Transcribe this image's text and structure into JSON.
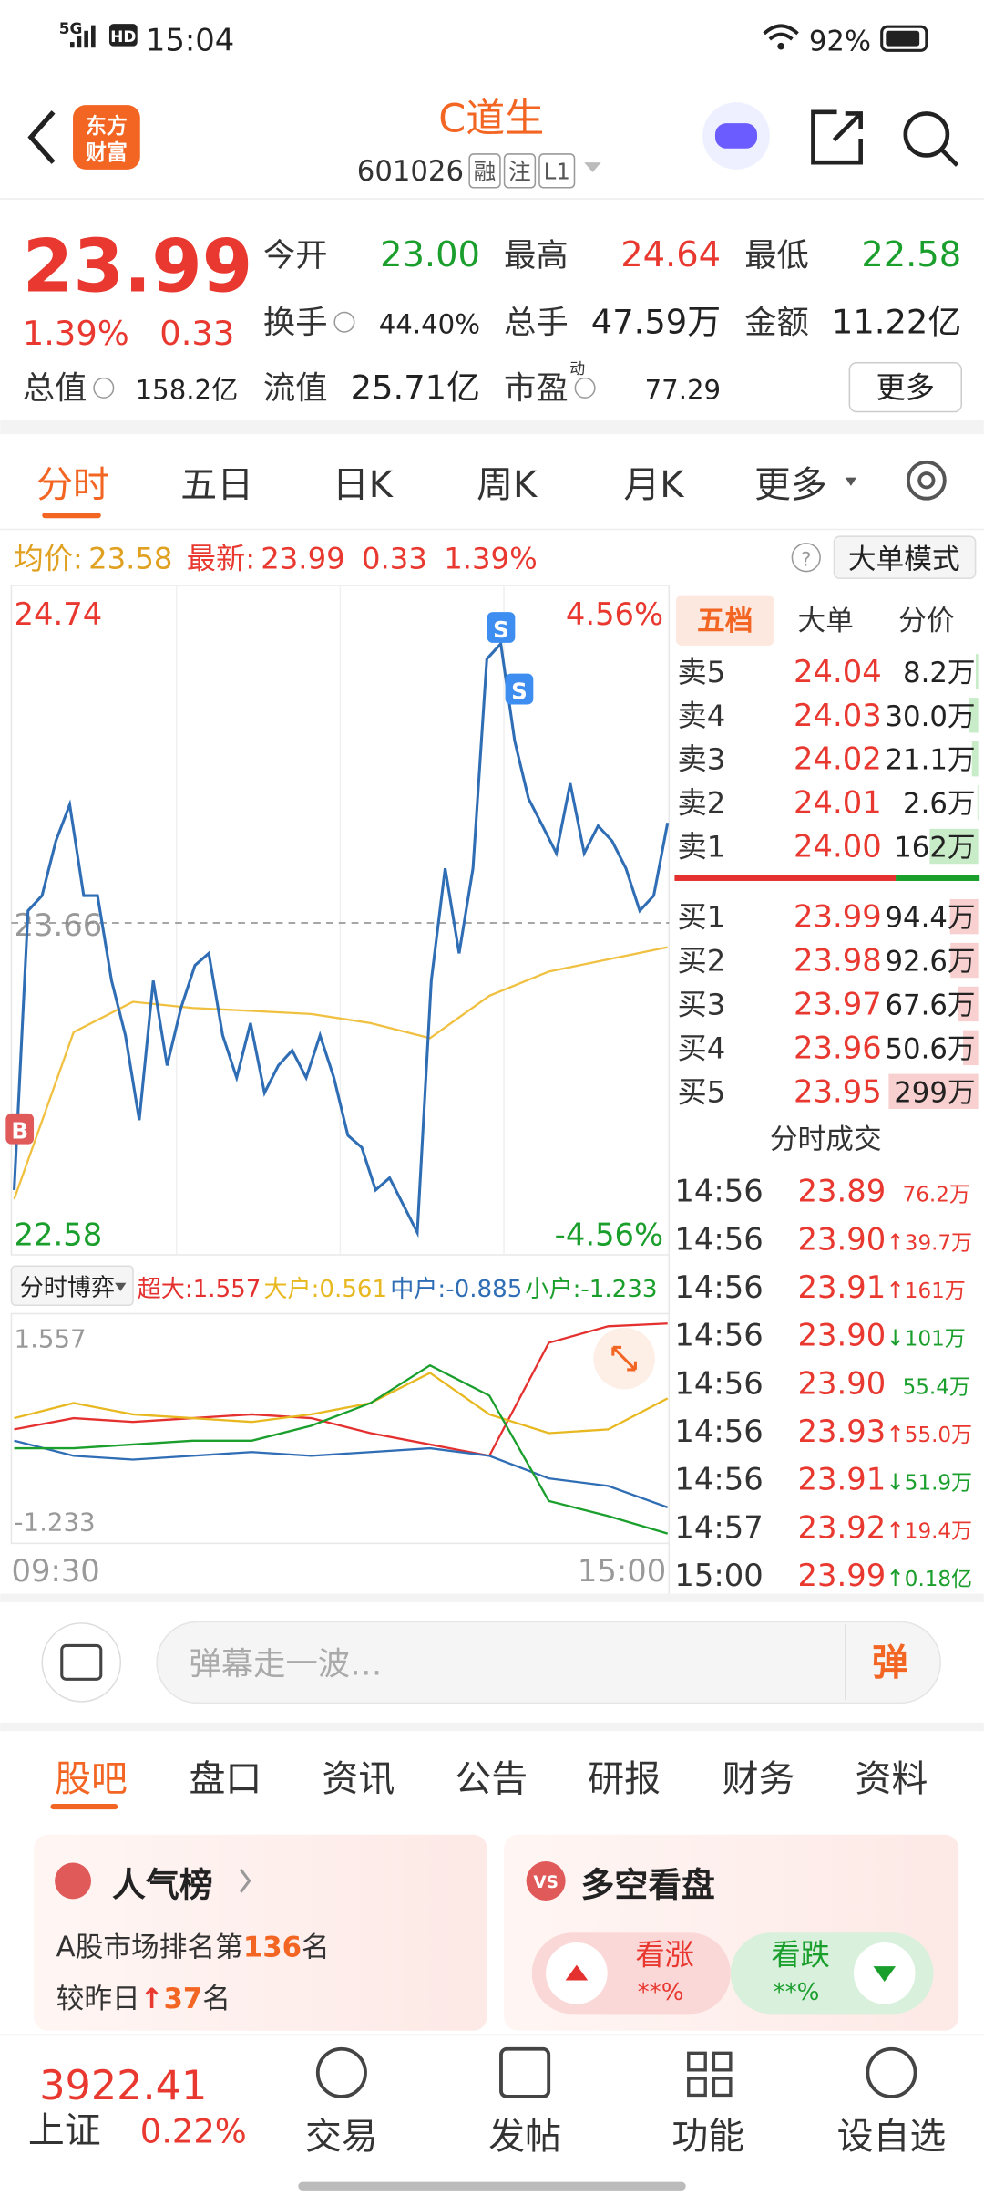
{
  "status_bar": {
    "network": "5G",
    "hd": "HD",
    "time": "15:04",
    "battery": "92%"
  },
  "header": {
    "logo": [
      "东方",
      "财富"
    ],
    "title": "C道生",
    "code": "601026",
    "tags": [
      "融",
      "注",
      "L1"
    ]
  },
  "quote": {
    "price": "23.99",
    "change_pct": "1.39%",
    "change": "0.33",
    "stats": [
      {
        "label": "今开",
        "value": "23.00"
      },
      {
        "label": "最高",
        "value": "24.64"
      },
      {
        "label": "最低",
        "value": "22.58"
      },
      {
        "label": "换手",
        "value": "44.40%"
      },
      {
        "label": "总手",
        "value": "47.59万"
      },
      {
        "label": "金额",
        "value": "11.22亿"
      },
      {
        "label": "总值",
        "value": "158.2亿"
      },
      {
        "label": "流值",
        "value": "25.71亿"
      },
      {
        "label": "市盈",
        "superscript": "动",
        "value": "77.29"
      }
    ],
    "more": "更多"
  },
  "tabs": [
    "分时",
    "五日",
    "日K",
    "周K",
    "月K",
    "更多"
  ],
  "info_bar": {
    "avg_label": "均价:",
    "avg": "23.58",
    "latest_label": "最新:",
    "latest": "23.99",
    "change": "0.33",
    "change_pct": "1.39%",
    "help": "?",
    "mode": "大单模式"
  },
  "chart": {
    "ylim": [
      22.58,
      24.74
    ],
    "yticks": [
      22.58,
      23.66,
      24.74
    ],
    "pct_labels": [
      "4.56%",
      "-4.56%"
    ],
    "markers": [
      "S",
      "S",
      "B"
    ],
    "price": {
      "color": "#2f6db5",
      "values": [
        22.78,
        23.7,
        23.75,
        23.93,
        24.05,
        23.75,
        23.75,
        23.47,
        23.29,
        23.01,
        23.47,
        23.19,
        23.38,
        23.52,
        23.56,
        23.29,
        23.15,
        23.33,
        23.1,
        23.19,
        23.24,
        23.15,
        23.29,
        23.15,
        22.96,
        22.92,
        22.78,
        22.82,
        22.73,
        22.64,
        23.47,
        23.84,
        23.56,
        23.84,
        24.53,
        24.58,
        24.26,
        24.07,
        23.98,
        23.89,
        24.12,
        23.89,
        23.98,
        23.93,
        23.84,
        23.7,
        23.75,
        23.99
      ]
    },
    "average": {
      "color": "#f0c040",
      "values": [
        22.75,
        23.3,
        23.4,
        23.38,
        23.37,
        23.36,
        23.33,
        23.28,
        23.42,
        23.5,
        23.54,
        23.58
      ]
    }
  },
  "flow": {
    "selector": "分时博弈",
    "ylim": [
      -1.233,
      1.557
    ],
    "yticks": [
      -1.233,
      1.557
    ],
    "xlabels": [
      "09:30",
      "15:00"
    ],
    "series": [
      {
        "name": "超大:",
        "value": "1.557",
        "color": "#e4312f",
        "values": [
          0.15,
          0.3,
          0.25,
          0.3,
          0.35,
          0.3,
          0.1,
          -0.05,
          -0.2,
          1.3,
          1.52,
          1.557
        ]
      },
      {
        "name": "大户:",
        "value": "0.561",
        "color": "#e8b820",
        "values": [
          0.3,
          0.5,
          0.35,
          0.3,
          0.25,
          0.35,
          0.5,
          0.9,
          0.35,
          0.1,
          0.15,
          0.561
        ]
      },
      {
        "name": "中户:",
        "value": "-0.885",
        "color": "#2f6db5",
        "values": [
          0.0,
          -0.2,
          -0.25,
          -0.2,
          -0.15,
          -0.2,
          -0.15,
          -0.1,
          -0.2,
          -0.5,
          -0.6,
          -0.885
        ]
      },
      {
        "name": "小户:",
        "value": "-1.233",
        "color": "#1a9e2c",
        "values": [
          -0.1,
          -0.1,
          -0.05,
          0.0,
          0.0,
          0.2,
          0.5,
          1.0,
          0.6,
          -0.8,
          -1.0,
          -1.233
        ]
      }
    ]
  },
  "order_book": {
    "tabs": [
      "五档",
      "大单",
      "分价"
    ],
    "asks": [
      {
        "label": "卖5",
        "price": "24.04",
        "volume": "8.2万"
      },
      {
        "label": "卖4",
        "price": "24.03",
        "volume": "30.0万"
      },
      {
        "label": "卖3",
        "price": "24.02",
        "volume": "21.1万"
      },
      {
        "label": "卖2",
        "price": "24.01",
        "volume": "2.6万"
      },
      {
        "label": "卖1",
        "price": "24.00",
        "volume": "162万"
      }
    ],
    "bids": [
      {
        "label": "买1",
        "price": "23.99",
        "volume": "94.4万"
      },
      {
        "label": "买2",
        "price": "23.98",
        "volume": "92.6万"
      },
      {
        "label": "买3",
        "price": "23.97",
        "volume": "67.6万"
      },
      {
        "label": "买4",
        "price": "23.96",
        "volume": "50.6万"
      },
      {
        "label": "买5",
        "price": "23.95",
        "volume": "299万"
      }
    ]
  },
  "trades": {
    "title": "分时成交",
    "rows": [
      {
        "time": "14:56",
        "price": "23.89",
        "volume": "76.2万",
        "color": "#e8382f"
      },
      {
        "time": "14:56",
        "price": "23.90",
        "arrow": "↑",
        "volume": "39.7万",
        "color": "#e8382f"
      },
      {
        "time": "14:56",
        "price": "23.91",
        "arrow": "↑",
        "volume": "161万",
        "color": "#e8382f"
      },
      {
        "time": "14:56",
        "price": "23.90",
        "arrow": "↓",
        "volume": "101万",
        "color": "#1a9e2c"
      },
      {
        "time": "14:56",
        "price": "23.90",
        "volume": "55.4万",
        "color": "#1a9e2c"
      },
      {
        "time": "14:56",
        "price": "23.93",
        "arrow": "↑",
        "volume": "55.0万",
        "color": "#e8382f"
      },
      {
        "time": "14:56",
        "price": "23.91",
        "arrow": "↓",
        "volume": "51.9万",
        "color": "#1a9e2c"
      },
      {
        "time": "14:57",
        "price": "23.92",
        "arrow": "↑",
        "volume": "19.4万",
        "color": "#e8382f"
      },
      {
        "time": "15:00",
        "price": "23.99",
        "arrow": "↑",
        "volume": "0.18亿",
        "color": "#1a9e2c"
      }
    ]
  },
  "danmaku": {
    "placeholder": "弹幕走一波…",
    "button": "弹"
  },
  "sections": [
    "股吧",
    "盘口",
    "资讯",
    "公告",
    "研报",
    "财务",
    "资料"
  ],
  "cards": {
    "popularity": {
      "title": "人气榜",
      "text1": "A股市场排名第",
      "rank": "136",
      "unit1": "名",
      "text2": "较昨日",
      "arrow": "↑",
      "change": "37",
      "unit2": "名"
    },
    "sentiment": {
      "icon": "VS",
      "title": "多空看盘",
      "up": "看涨",
      "up_pct": "**%",
      "down": "看跌",
      "down_pct": "**%"
    }
  },
  "nav": {
    "index_value": "3922.41",
    "index_name": "上证",
    "index_pct": "0.22%",
    "items": [
      "交易",
      "发帖",
      "功能",
      "设自选"
    ]
  }
}
